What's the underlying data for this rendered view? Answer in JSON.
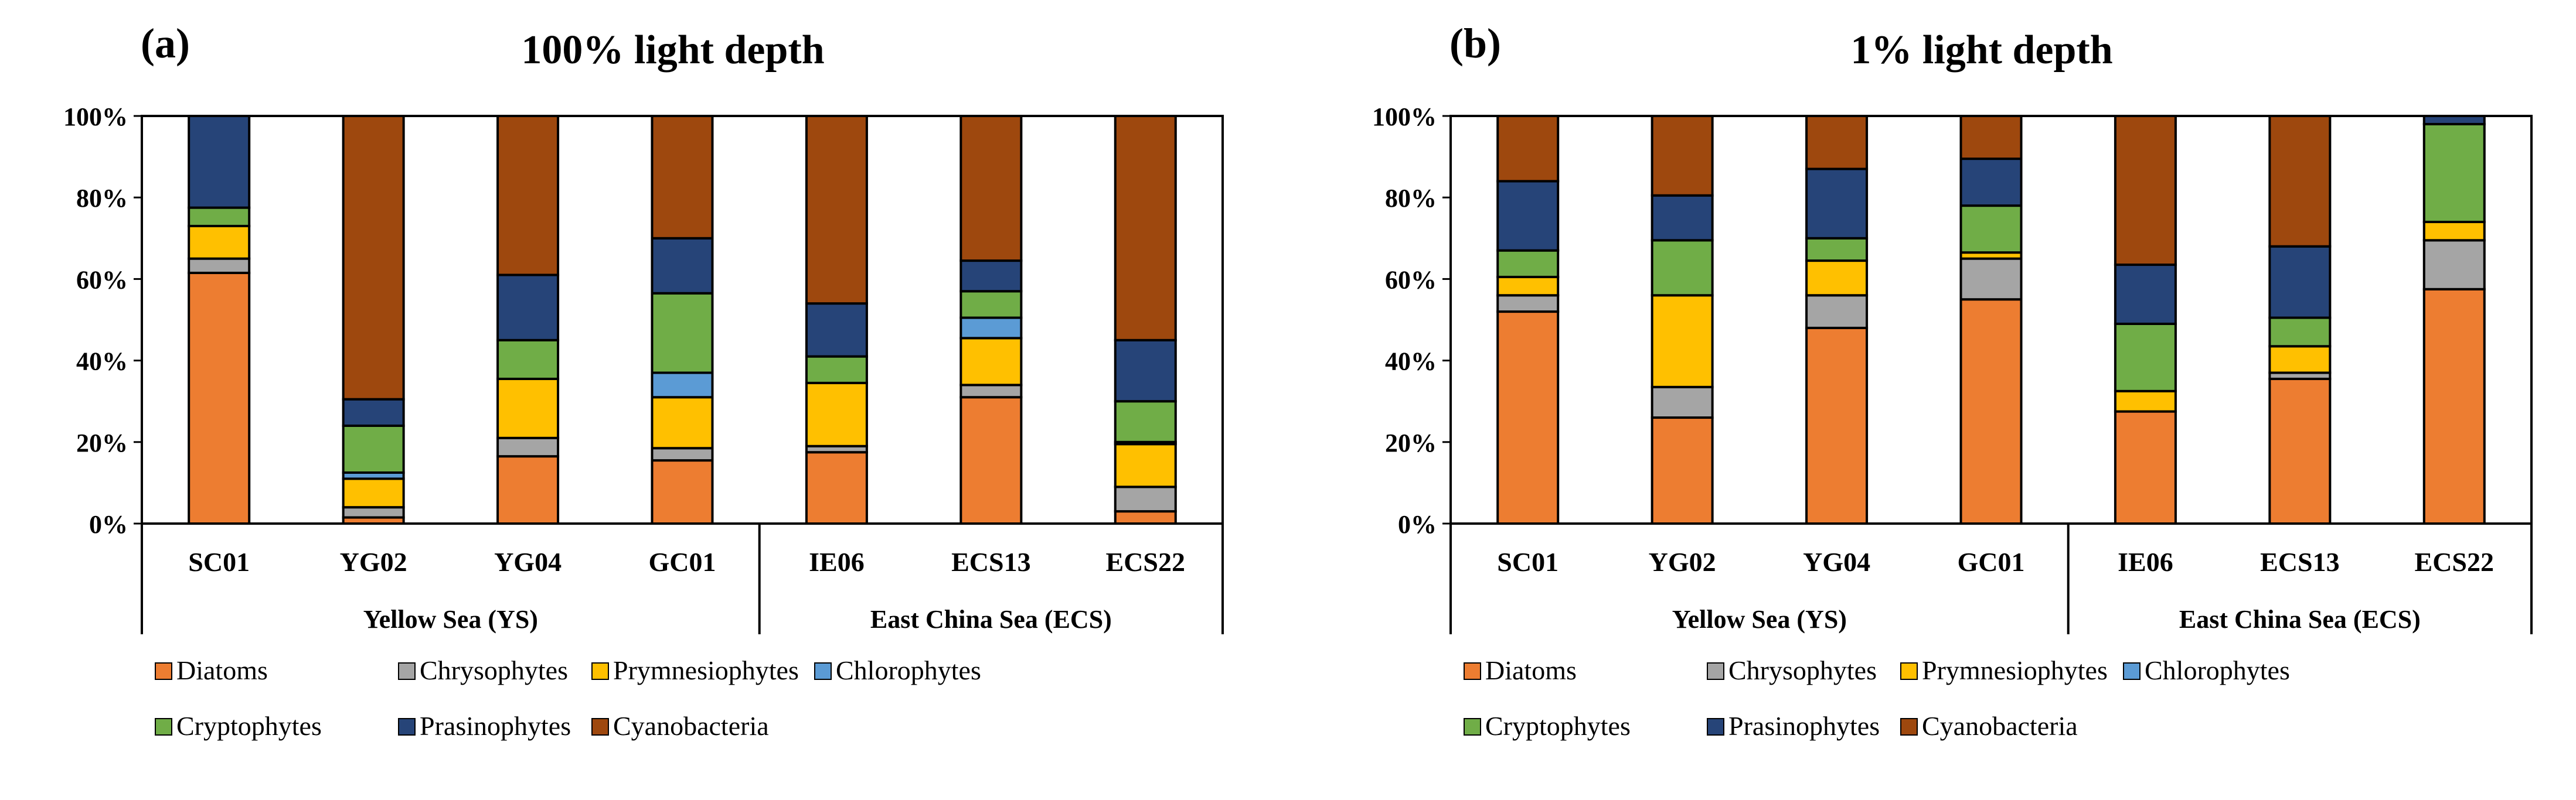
{
  "figure": {
    "series_names": [
      "Diatoms",
      "Chrysophytes",
      "Prymnesiophytes",
      "Chlorophytes",
      "Cryptophytes",
      "Prasinophytes",
      "Cyanobacteria"
    ],
    "colors": {
      "Diatoms": "#ED7D31",
      "Chrysophytes": "#A5A5A5",
      "Prymnesiophytes": "#FFC000",
      "Chlorophytes": "#5B9BD5",
      "Cryptophytes": "#70AD47",
      "Prasinophytes": "#264478",
      "Cyanobacteria": "#9E480E"
    }
  },
  "chart_data": [
    {
      "type": "bar",
      "stacked": true,
      "panel_label": "(a)",
      "title": "100% light depth",
      "categories": [
        "SC01",
        "YG02",
        "YG04",
        "GC01",
        "IE06",
        "ECS13",
        "ECS22"
      ],
      "groups": [
        {
          "name": "Yellow Sea (YS)",
          "categories": [
            "SC01",
            "YG02",
            "YG04",
            "GC01"
          ]
        },
        {
          "name": "East China Sea (ECS)",
          "categories": [
            "IE06",
            "ECS13",
            "ECS22"
          ]
        }
      ],
      "y_ticks": [
        "0%",
        "20%",
        "40%",
        "60%",
        "80%",
        "100%"
      ],
      "ylim": [
        0,
        100
      ],
      "legend_labels": [
        "Diatoms",
        "Chrysophytes",
        "Prymnesiophytes",
        "Chlorophytes",
        "Cryptophytes",
        "Prasinophytes",
        "Cyanobacteria"
      ],
      "series": [
        {
          "name": "Diatoms",
          "values": [
            61.5,
            1.5,
            16.5,
            15.5,
            17.5,
            31.0,
            3.0
          ]
        },
        {
          "name": "Chrysophytes",
          "values": [
            3.5,
            2.5,
            4.5,
            3.0,
            1.5,
            3.0,
            6.0
          ]
        },
        {
          "name": "Prymnesiophytes",
          "values": [
            8.0,
            7.0,
            14.5,
            12.5,
            15.5,
            11.5,
            10.5
          ]
        },
        {
          "name": "Chlorophytes",
          "values": [
            0.0,
            1.5,
            0.0,
            6.0,
            0.0,
            5.0,
            0.5
          ]
        },
        {
          "name": "Cryptophytes",
          "values": [
            4.5,
            11.5,
            9.5,
            19.5,
            6.5,
            6.5,
            10.0
          ]
        },
        {
          "name": "Prasinophytes",
          "values": [
            22.5,
            6.5,
            16.0,
            13.5,
            13.0,
            7.5,
            15.0
          ]
        },
        {
          "name": "Cyanobacteria",
          "values": [
            0.0,
            69.5,
            39.0,
            30.0,
            46.0,
            35.5,
            55.0
          ]
        }
      ]
    },
    {
      "type": "bar",
      "stacked": true,
      "panel_label": "(b)",
      "title": "1% light depth",
      "categories": [
        "SC01",
        "YG02",
        "YG04",
        "GC01",
        "IE06",
        "ECS13",
        "ECS22"
      ],
      "groups": [
        {
          "name": "Yellow Sea (YS)",
          "categories": [
            "SC01",
            "YG02",
            "YG04",
            "GC01"
          ]
        },
        {
          "name": "East China Sea (ECS)",
          "categories": [
            "IE06",
            "ECS13",
            "ECS22"
          ]
        }
      ],
      "y_ticks": [
        "0%",
        "20%",
        "40%",
        "60%",
        "80%",
        "100%"
      ],
      "ylim": [
        0,
        100
      ],
      "legend_labels": [
        "Diatoms",
        "Chrysophytes",
        "Prymnesiophytes",
        "Chlorophytes",
        "Cryptophytes",
        "Prasinophytes",
        "Cyanobacteria"
      ],
      "series": [
        {
          "name": "Diatoms",
          "values": [
            52.0,
            26.0,
            48.0,
            55.0,
            27.5,
            35.5,
            57.5
          ]
        },
        {
          "name": "Chrysophytes",
          "values": [
            4.0,
            7.5,
            8.0,
            10.0,
            0.0,
            1.5,
            12.0
          ]
        },
        {
          "name": "Prymnesiophytes",
          "values": [
            4.5,
            22.5,
            8.5,
            1.5,
            5.0,
            6.5,
            4.5
          ]
        },
        {
          "name": "Chlorophytes",
          "values": [
            0.0,
            0.0,
            0.0,
            0.0,
            0.0,
            0.0,
            0.0
          ]
        },
        {
          "name": "Cryptophytes",
          "values": [
            6.5,
            13.5,
            5.5,
            11.5,
            16.5,
            7.0,
            24.0
          ]
        },
        {
          "name": "Prasinophytes",
          "values": [
            17.0,
            11.0,
            17.0,
            11.5,
            14.5,
            17.5,
            2.0
          ]
        },
        {
          "name": "Cyanobacteria",
          "values": [
            16.0,
            19.5,
            13.0,
            10.5,
            36.5,
            32.0,
            0.0
          ]
        }
      ]
    }
  ]
}
